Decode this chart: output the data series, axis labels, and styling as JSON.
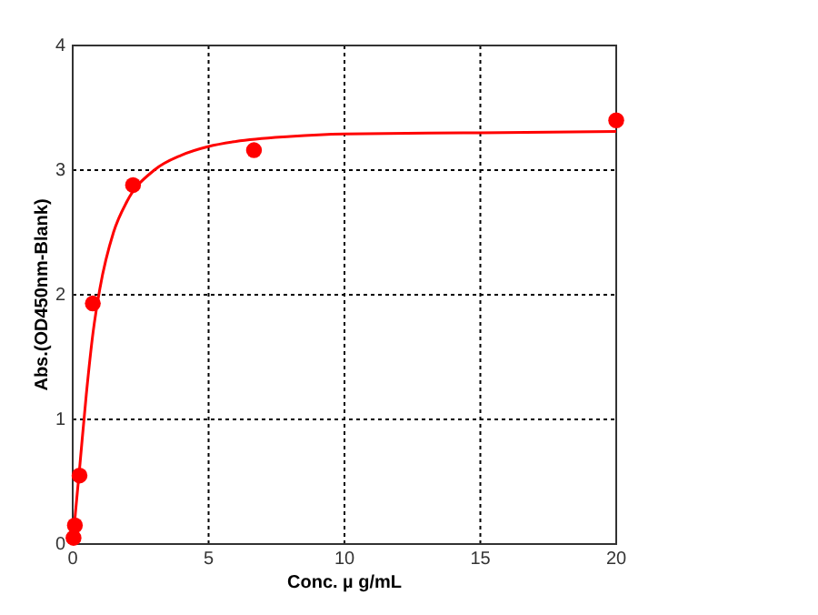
{
  "chart_data": {
    "type": "scatter",
    "xlabel": "Conc. µ g/mL",
    "ylabel": "Abs.(OD450nm-Blank)",
    "xlim": [
      0,
      20
    ],
    "ylim": [
      0,
      4
    ],
    "xticks": [
      0,
      5,
      10,
      15,
      20
    ],
    "yticks": [
      0,
      1,
      2,
      3,
      4
    ],
    "grid": true,
    "series": [
      {
        "type": "line",
        "color": "#ff0000",
        "line_style": "solid",
        "marker": "none",
        "x": [
          0,
          0.1,
          0.25,
          0.5,
          0.75,
          1,
          1.5,
          2,
          3,
          4,
          5,
          6,
          8,
          10,
          15,
          20
        ],
        "values": [
          0,
          0.25,
          0.6,
          1.2,
          1.7,
          2.05,
          2.5,
          2.75,
          3.0,
          3.12,
          3.19,
          3.23,
          3.27,
          3.29,
          3.3,
          3.31
        ]
      },
      {
        "color": "#ff0000",
        "marker": "circle",
        "x": [
          0.03,
          0.08,
          0.25,
          0.74,
          2.22,
          6.67,
          20
        ],
        "values": [
          0.05,
          0.15,
          0.55,
          1.93,
          2.88,
          3.16,
          3.4
        ]
      }
    ]
  }
}
